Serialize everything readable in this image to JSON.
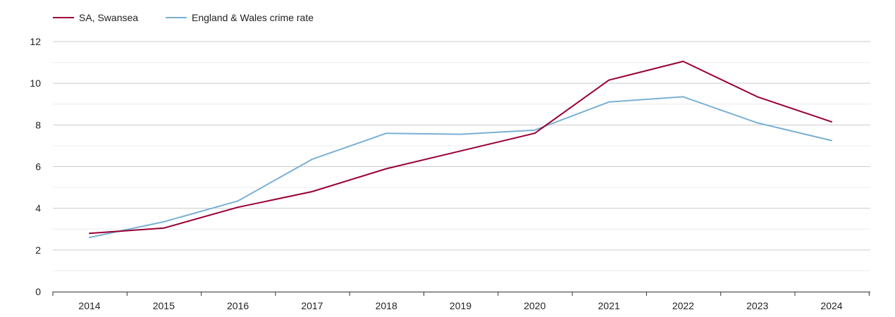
{
  "chart_data": {
    "type": "line",
    "title": "",
    "xlabel": "",
    "ylabel": "",
    "x": [
      "2014",
      "2015",
      "2016",
      "2017",
      "2018",
      "2019",
      "2020",
      "2021",
      "2022",
      "2023",
      "2024"
    ],
    "ylim": [
      0,
      12
    ],
    "yticks": [
      0,
      2,
      4,
      6,
      8,
      10,
      12
    ],
    "grid": true,
    "legend_position": "top-left",
    "series": [
      {
        "name": "SA, Swansea",
        "color": "#990033",
        "values": [
          2.8,
          3.05,
          4.05,
          4.8,
          5.9,
          6.75,
          7.6,
          10.15,
          11.05,
          9.35,
          8.15
        ]
      },
      {
        "name": "England & Wales crime rate",
        "color": "#7ab0d4",
        "values": [
          2.6,
          3.35,
          4.35,
          6.35,
          7.6,
          7.55,
          7.75,
          9.1,
          9.35,
          8.1,
          7.25
        ]
      }
    ]
  }
}
